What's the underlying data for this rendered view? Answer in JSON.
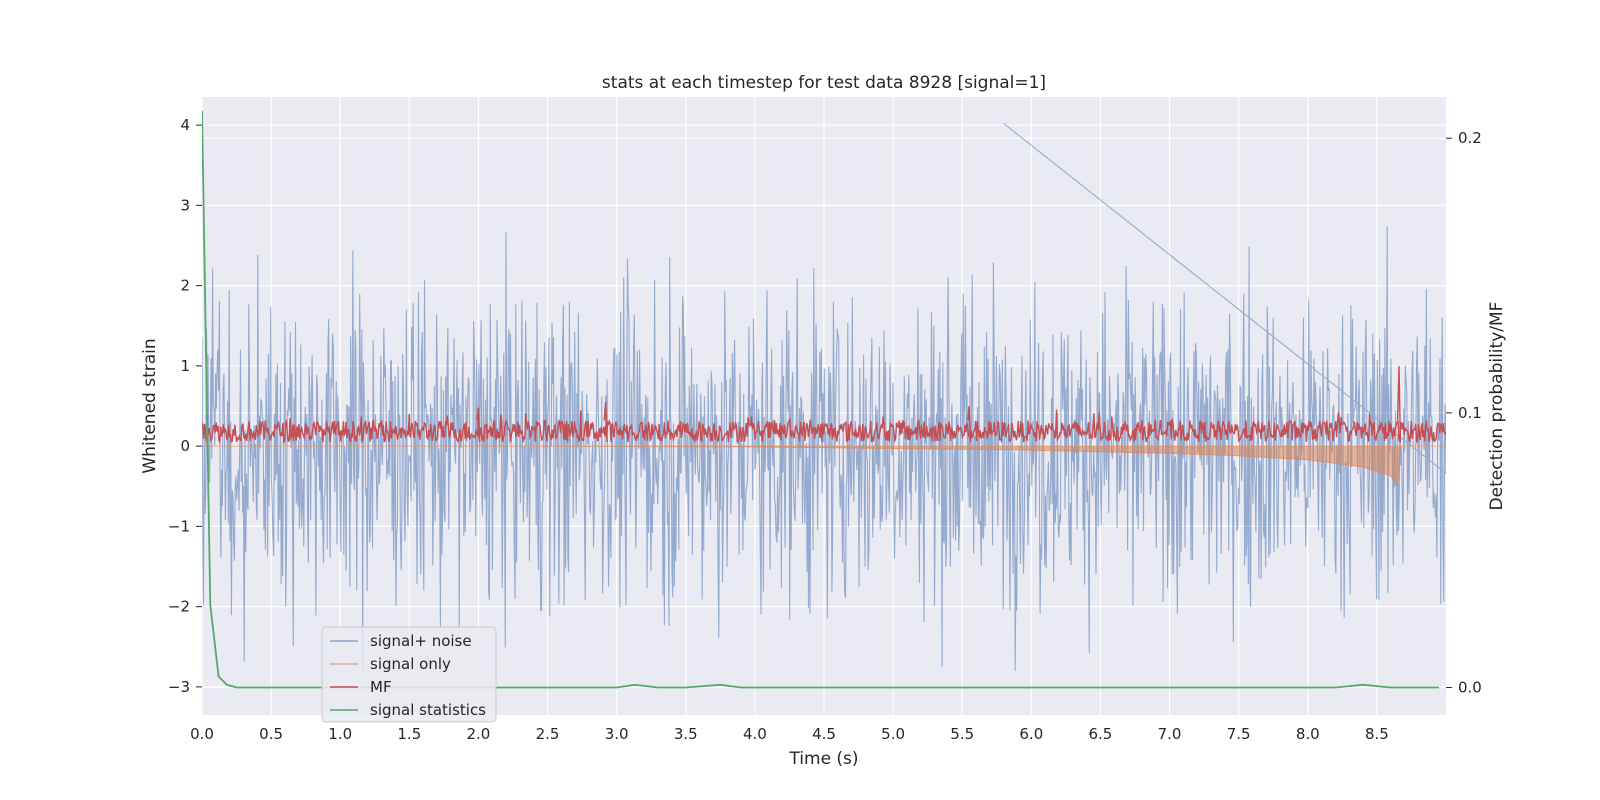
{
  "chart_data": {
    "type": "line",
    "title": "stats at each timestep for test data 8928 [signal=1]",
    "xlabel": "Time (s)",
    "ylabel": "Whitened strain",
    "y2label": "Detection probability/MF",
    "xlim": [
      0.0,
      9.0
    ],
    "ylim": [
      -3.35,
      4.35
    ],
    "y2lim": [
      -0.01,
      0.215
    ],
    "xticks": [
      "0.0",
      "0.5",
      "1.0",
      "1.5",
      "2.0",
      "2.5",
      "3.0",
      "3.5",
      "4.0",
      "4.5",
      "5.0",
      "5.5",
      "6.0",
      "6.5",
      "7.0",
      "7.5",
      "8.0",
      "8.5"
    ],
    "xtick_values": [
      0.0,
      0.5,
      1.0,
      1.5,
      2.0,
      2.5,
      3.0,
      3.5,
      4.0,
      4.5,
      5.0,
      5.5,
      6.0,
      6.5,
      7.0,
      7.5,
      8.0,
      8.5
    ],
    "yticks": [
      "−3",
      "−2",
      "−1",
      "0",
      "1",
      "2",
      "3",
      "4"
    ],
    "ytick_values": [
      -3,
      -2,
      -1,
      0,
      1,
      2,
      3,
      4
    ],
    "y2ticks": [
      "0.0",
      "0.1",
      "0.2"
    ],
    "y2tick_values": [
      0.0,
      0.1,
      0.2
    ],
    "grid": true,
    "legend_position": "lower-left",
    "series": [
      {
        "name": "signal+ noise",
        "axis": "left",
        "color": "#4c72b0",
        "style": "noise",
        "noise_amplitude_min": -2.8,
        "noise_amplitude_max": 4.02,
        "x_range": [
          0.0,
          9.0
        ]
      },
      {
        "name": "signal only",
        "axis": "left",
        "color": "#dd8452",
        "style": "chirp",
        "chirp_envelope": {
          "x": [
            0.0,
            2.0,
            4.0,
            5.0,
            6.0,
            7.0,
            7.5,
            8.0,
            8.4,
            8.6,
            8.65,
            8.67,
            9.0
          ],
          "lower": [
            0.0,
            0.0,
            -0.01,
            -0.03,
            -0.05,
            -0.09,
            -0.12,
            -0.17,
            -0.26,
            -0.37,
            -0.5,
            0.0,
            0.0
          ]
        }
      },
      {
        "name": "MF",
        "axis": "left",
        "color": "#c44e52",
        "style": "band",
        "band_lower": 0.05,
        "band_upper": 0.32,
        "spikes": [
          {
            "x": 2.92,
            "y": 0.55
          },
          {
            "x": 8.66,
            "y": 1.0
          },
          {
            "x": 2.0,
            "y": 0.48
          },
          {
            "x": 5.55,
            "y": 0.5
          }
        ]
      },
      {
        "name": "signal statistics",
        "axis": "right",
        "color": "#55a868",
        "x": [
          0.0,
          0.03,
          0.06,
          0.12,
          0.18,
          0.25,
          0.4,
          1.0,
          2.0,
          3.0,
          3.13,
          3.3,
          3.5,
          3.75,
          3.9,
          4.0,
          5.0,
          6.0,
          7.0,
          8.0,
          8.2,
          8.4,
          8.6,
          8.95
        ],
        "y": [
          0.21,
          0.12,
          0.03,
          0.004,
          0.001,
          0.0,
          0.0,
          0.0,
          0.0,
          0.0,
          0.001,
          0.0,
          0.0,
          0.001,
          0.0,
          0.0,
          0.0,
          0.0,
          0.0,
          0.0,
          0.0,
          0.001,
          0.0,
          0.0
        ]
      }
    ]
  }
}
